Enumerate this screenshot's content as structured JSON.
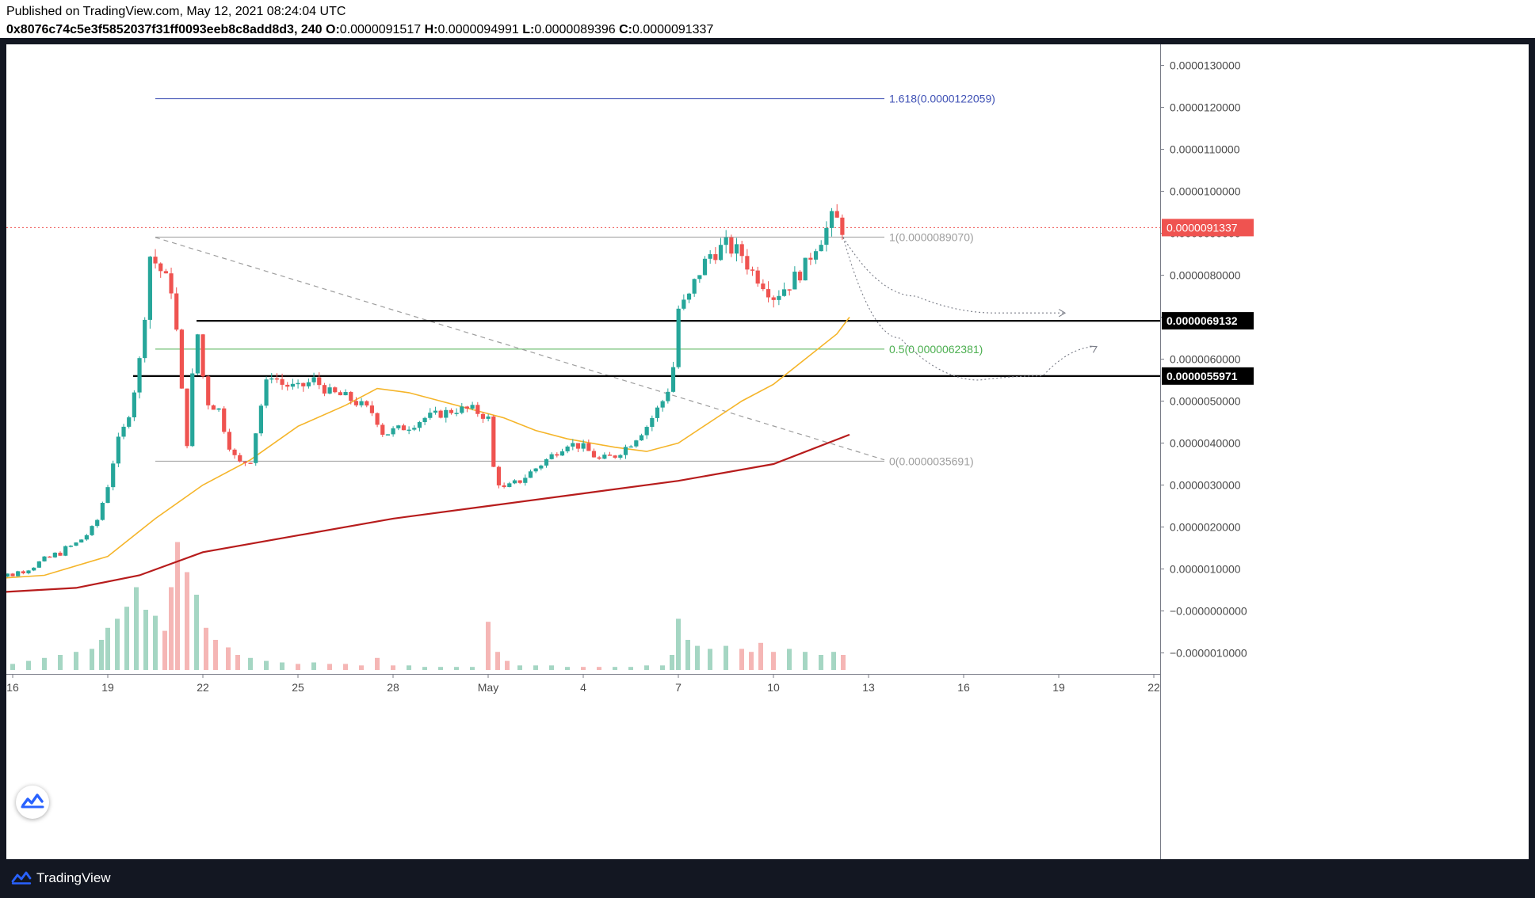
{
  "header": {
    "published": "Published on TradingView.com, May 12, 2021 08:24:04 UTC",
    "symbol": "0x8076c74c5e3f5852037f31ff0093eeb8c8add8d3, 240",
    "o_label": "O:",
    "o_value": "0.0000091517",
    "h_label": "H:",
    "h_value": "0.0000094991",
    "l_label": "L:",
    "l_value": "0.0000089396",
    "c_label": "C:",
    "c_value": "0.0000091337"
  },
  "footer": {
    "brand": "TradingView",
    "logo_icon": "tradingview-logo-icon"
  },
  "colors": {
    "up": "#26a69a",
    "down": "#ef5350",
    "ema50": "#f5b52a",
    "ema200": "#b71c1c",
    "fib_top": "#3f51b5",
    "fib_mid": "#4caf50",
    "fib_grey": "#9e9e9e",
    "price_badge": "#ef5350",
    "level_badge": "#000000"
  },
  "chart_data": {
    "type": "candlestick",
    "title": "",
    "xlabel": "",
    "ylabel": "",
    "ylim": [
      -1.5e-06,
      1.35e-05
    ],
    "y_ticks": [
      "0.0000130000",
      "0.0000120000",
      "0.0000110000",
      "0.0000100000",
      "0.0000090000",
      "0.0000080000",
      "0.0000070000",
      "0.0000060000",
      "0.0000050000",
      "0.0000040000",
      "0.0000030000",
      "0.0000020000",
      "0.0000010000",
      "−0.0000000000",
      "−0.0000010000"
    ],
    "x_ticks": [
      {
        "label": "16",
        "day": 16
      },
      {
        "label": "19",
        "day": 19
      },
      {
        "label": "22",
        "day": 22
      },
      {
        "label": "25",
        "day": 25
      },
      {
        "label": "28",
        "day": 28
      },
      {
        "label": "May",
        "day": 31
      },
      {
        "label": "4",
        "day": 34
      },
      {
        "label": "7",
        "day": 37
      },
      {
        "label": "10",
        "day": 40
      },
      {
        "label": "13",
        "day": 43
      },
      {
        "label": "16",
        "day": 46
      },
      {
        "label": "19",
        "day": 49
      },
      {
        "label": "22",
        "day": 52
      }
    ],
    "xlim_days": [
      15.8,
      52.2
    ],
    "close_path": [
      [
        15.0,
        7.5e-07
      ],
      [
        16.0,
        8.8e-07
      ],
      [
        17.0,
        1.2e-06
      ],
      [
        18.0,
        1.6e-06
      ],
      [
        18.6,
        2e-06
      ],
      [
        19.0,
        3e-06
      ],
      [
        19.3,
        4e-06
      ],
      [
        19.6,
        4.5e-06
      ],
      [
        19.9,
        5.5e-06
      ],
      [
        20.1,
        6.4e-06
      ],
      [
        20.3,
        8.5e-06
      ],
      [
        20.6,
        8.2e-06
      ],
      [
        20.9,
        7.8e-06
      ],
      [
        21.1,
        7.6e-06
      ],
      [
        21.2,
        6.2e-06
      ],
      [
        21.5,
        4e-06
      ],
      [
        21.8,
        6.8e-06
      ],
      [
        22.1,
        5e-06
      ],
      [
        22.5,
        4.8e-06
      ],
      [
        22.8,
        4e-06
      ],
      [
        23.1,
        3.5e-06
      ],
      [
        23.5,
        3.6e-06
      ],
      [
        23.8,
        4.8e-06
      ],
      [
        24.1,
        5.7e-06
      ],
      [
        24.5,
        5.4e-06
      ],
      [
        25.0,
        5.3e-06
      ],
      [
        25.5,
        5.5e-06
      ],
      [
        26.0,
        5.2e-06
      ],
      [
        26.5,
        5.1e-06
      ],
      [
        27.0,
        4.9e-06
      ],
      [
        27.4,
        4.7e-06
      ],
      [
        27.7,
        4.2e-06
      ],
      [
        28.0,
        4.3e-06
      ],
      [
        28.5,
        4.4e-06
      ],
      [
        29.0,
        4.6e-06
      ],
      [
        29.5,
        4.7e-06
      ],
      [
        30.0,
        4.8e-06
      ],
      [
        30.5,
        4.8e-06
      ],
      [
        31.0,
        4.6e-06
      ],
      [
        31.2,
        3.2e-06
      ],
      [
        31.5,
        2.9e-06
      ],
      [
        32.0,
        3.1e-06
      ],
      [
        32.5,
        3.4e-06
      ],
      [
        33.0,
        3.7e-06
      ],
      [
        33.5,
        4e-06
      ],
      [
        34.0,
        3.9e-06
      ],
      [
        34.5,
        3.6e-06
      ],
      [
        35.0,
        3.7e-06
      ],
      [
        35.5,
        4e-06
      ],
      [
        36.0,
        4.4e-06
      ],
      [
        36.5,
        5e-06
      ],
      [
        36.8,
        5.5e-06
      ],
      [
        37.0,
        7.2e-06
      ],
      [
        37.3,
        7.4e-06
      ],
      [
        37.6,
        8e-06
      ],
      [
        38.0,
        8.5e-06
      ],
      [
        38.5,
        8.7e-06
      ],
      [
        39.0,
        8.5e-06
      ],
      [
        39.3,
        8.1e-06
      ],
      [
        39.6,
        7.9e-06
      ],
      [
        40.0,
        7.5e-06
      ],
      [
        40.5,
        7.8e-06
      ],
      [
        41.0,
        8.2e-06
      ],
      [
        41.3,
        8.7e-06
      ],
      [
        41.6,
        9e-06
      ],
      [
        41.9,
        9.4e-06
      ],
      [
        42.2,
        9.1e-06
      ]
    ],
    "series": [
      {
        "name": "",
        "type": "ema",
        "color_key": "ema50",
        "points": [
          [
            15.0,
            7.5e-07
          ],
          [
            17.0,
            8.5e-07
          ],
          [
            19.0,
            1.3e-06
          ],
          [
            20.5,
            2.2e-06
          ],
          [
            22.0,
            3e-06
          ],
          [
            23.5,
            3.6e-06
          ],
          [
            25.0,
            4.4e-06
          ],
          [
            26.5,
            4.9e-06
          ],
          [
            27.5,
            5.3e-06
          ],
          [
            28.5,
            5.2e-06
          ],
          [
            29.5,
            5e-06
          ],
          [
            30.5,
            4.8e-06
          ],
          [
            31.5,
            4.6e-06
          ],
          [
            32.5,
            4.3e-06
          ],
          [
            33.5,
            4.1e-06
          ],
          [
            35.0,
            3.9e-06
          ],
          [
            36.0,
            3.8e-06
          ],
          [
            37.0,
            4e-06
          ],
          [
            38.0,
            4.5e-06
          ],
          [
            39.0,
            5e-06
          ],
          [
            40.0,
            5.4e-06
          ],
          [
            41.0,
            6e-06
          ],
          [
            42.0,
            6.6e-06
          ],
          [
            42.4,
            7e-06
          ]
        ]
      },
      {
        "name": "",
        "type": "ema",
        "color_key": "ema200",
        "points": [
          [
            15.7,
            4.5e-07
          ],
          [
            18.0,
            5.5e-07
          ],
          [
            20.0,
            8.5e-07
          ],
          [
            22.0,
            1.4e-06
          ],
          [
            25.0,
            1.8e-06
          ],
          [
            28.0,
            2.2e-06
          ],
          [
            31.0,
            2.5e-06
          ],
          [
            34.0,
            2.8e-06
          ],
          [
            37.0,
            3.1e-06
          ],
          [
            40.0,
            3.5e-06
          ],
          [
            42.4,
            4.2e-06
          ]
        ]
      }
    ],
    "volume": [
      [
        15.1,
        2
      ],
      [
        15.5,
        3
      ],
      [
        16.0,
        4
      ],
      [
        16.5,
        6
      ],
      [
        17.0,
        8
      ],
      [
        17.5,
        10
      ],
      [
        18.0,
        12
      ],
      [
        18.5,
        14
      ],
      [
        18.8,
        20
      ],
      [
        19.0,
        28
      ],
      [
        19.3,
        34
      ],
      [
        19.6,
        42
      ],
      [
        19.9,
        55
      ],
      [
        20.2,
        40
      ],
      [
        20.5,
        36
      ],
      [
        20.8,
        26
      ],
      [
        21.0,
        55
      ],
      [
        21.2,
        85
      ],
      [
        21.5,
        65
      ],
      [
        21.8,
        50
      ],
      [
        22.1,
        28
      ],
      [
        22.4,
        20
      ],
      [
        22.8,
        15
      ],
      [
        23.1,
        10
      ],
      [
        23.5,
        8
      ],
      [
        24.0,
        6
      ],
      [
        24.5,
        5
      ],
      [
        25.0,
        4
      ],
      [
        25.5,
        5
      ],
      [
        26.0,
        4
      ],
      [
        26.5,
        4
      ],
      [
        27.0,
        3
      ],
      [
        27.5,
        8
      ],
      [
        28.0,
        3
      ],
      [
        28.5,
        3
      ],
      [
        29.0,
        2
      ],
      [
        29.5,
        2
      ],
      [
        30.0,
        2
      ],
      [
        30.5,
        2
      ],
      [
        31.0,
        32
      ],
      [
        31.3,
        12
      ],
      [
        31.6,
        6
      ],
      [
        32.0,
        3
      ],
      [
        32.5,
        3
      ],
      [
        33.0,
        3
      ],
      [
        33.5,
        2
      ],
      [
        34.0,
        2
      ],
      [
        34.5,
        2
      ],
      [
        35.0,
        2
      ],
      [
        35.5,
        2
      ],
      [
        36.0,
        3
      ],
      [
        36.5,
        3
      ],
      [
        36.8,
        10
      ],
      [
        37.0,
        34
      ],
      [
        37.3,
        20
      ],
      [
        37.6,
        16
      ],
      [
        38.0,
        14
      ],
      [
        38.5,
        16
      ],
      [
        39.0,
        14
      ],
      [
        39.3,
        12
      ],
      [
        39.6,
        18
      ],
      [
        40.0,
        12
      ],
      [
        40.5,
        14
      ],
      [
        41.0,
        12
      ],
      [
        41.5,
        10
      ],
      [
        41.9,
        12
      ],
      [
        42.2,
        10
      ]
    ],
    "volume_scale_max": 100,
    "fib_levels": [
      {
        "label": "1.618(0.0000122059)",
        "value": 1.22059e-05,
        "color_key": "fib_top"
      },
      {
        "label": "1(0.0000089070)",
        "value": 8.907e-06,
        "color_key": "fib_grey"
      },
      {
        "label": "0.5(0.0000062381)",
        "value": 6.2381e-06,
        "color_key": "fib_mid"
      },
      {
        "label": "0(0.0000035691)",
        "value": 3.5691e-06,
        "color_key": "fib_grey"
      }
    ],
    "fib_x_range": [
      20.5,
      43.5
    ],
    "support_levels": [
      {
        "label": "0.0000069132",
        "value": 6.9132e-06,
        "x_start": 21.8
      },
      {
        "label": "0.0000055971",
        "value": 5.5971e-06,
        "x_start": 19.8
      }
    ],
    "current_price": {
      "label": "0.0000091337",
      "value": 9.1337e-06
    },
    "trendline": [
      [
        20.5,
        8.9e-06
      ],
      [
        43.5,
        3.6e-06
      ]
    ],
    "projections": [
      [
        [
          42.2,
          8.9e-06
        ],
        [
          44.5,
          7.5e-06
        ],
        [
          47.0,
          7.1e-06
        ],
        [
          49.2,
          7.1e-06
        ]
      ],
      [
        [
          42.2,
          8.9e-06
        ],
        [
          44.0,
          6.5e-06
        ],
        [
          46.5,
          5.5e-06
        ],
        [
          48.5,
          5.6e-06
        ],
        [
          50.2,
          6.3e-06
        ]
      ]
    ]
  }
}
